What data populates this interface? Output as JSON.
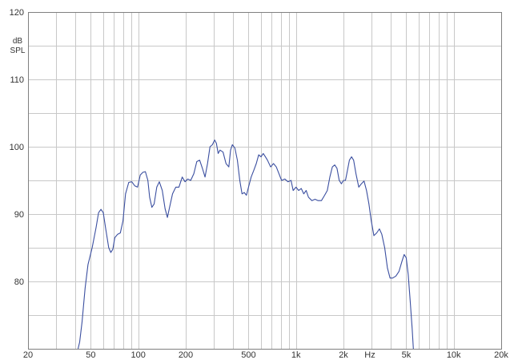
{
  "chart_data": {
    "type": "line",
    "x_scale": "log",
    "xlim": [
      20,
      20000
    ],
    "ylim": [
      70,
      120
    ],
    "grid": true,
    "y_unit_lines": [
      "dB",
      "SPL"
    ],
    "x_unit": "Hz",
    "y_ticks": [
      {
        "value": 80,
        "label": "80"
      },
      {
        "value": 90,
        "label": "90"
      },
      {
        "value": 100,
        "label": "100"
      },
      {
        "value": 110,
        "label": "110"
      },
      {
        "value": 120,
        "label": "120"
      }
    ],
    "x_ticks": [
      {
        "value": 20,
        "label": "20"
      },
      {
        "value": 50,
        "label": "50"
      },
      {
        "value": 100,
        "label": "100"
      },
      {
        "value": 200,
        "label": "200"
      },
      {
        "value": 500,
        "label": "500"
      },
      {
        "value": 1000,
        "label": "1k"
      },
      {
        "value": 2000,
        "label": "2k"
      },
      {
        "value": 5000,
        "label": "5k"
      },
      {
        "value": 10000,
        "label": "10k"
      },
      {
        "value": 20000,
        "label": "20k"
      }
    ],
    "x_gridlines": [
      30,
      40,
      50,
      60,
      70,
      80,
      90,
      100,
      200,
      300,
      400,
      500,
      600,
      700,
      800,
      900,
      1000,
      2000,
      3000,
      4000,
      5000,
      6000,
      7000,
      8000,
      9000,
      10000
    ],
    "y_gridlines": [
      75,
      80,
      85,
      90,
      95,
      100,
      105,
      110,
      115
    ],
    "series": [
      {
        "color": "#3b4fa0",
        "points": [
          [
            41.5,
            70.0
          ],
          [
            42.5,
            71.0
          ],
          [
            44,
            74.0
          ],
          [
            46,
            79.0
          ],
          [
            48,
            82.5
          ],
          [
            51,
            85.0
          ],
          [
            54,
            88.0
          ],
          [
            56,
            90.2
          ],
          [
            58,
            90.7
          ],
          [
            60,
            90.2
          ],
          [
            62,
            88.0
          ],
          [
            65,
            85.0
          ],
          [
            67,
            84.3
          ],
          [
            69,
            84.8
          ],
          [
            71,
            86.5
          ],
          [
            74,
            87.0
          ],
          [
            77,
            87.2
          ],
          [
            80,
            89.0
          ],
          [
            83,
            93.0
          ],
          [
            87,
            94.7
          ],
          [
            91,
            94.8
          ],
          [
            95,
            94.2
          ],
          [
            99,
            94.0
          ],
          [
            103,
            95.8
          ],
          [
            107,
            96.2
          ],
          [
            111,
            96.3
          ],
          [
            115,
            95.0
          ],
          [
            118,
            92.5
          ],
          [
            122,
            91.0
          ],
          [
            126,
            91.5
          ],
          [
            131,
            94.0
          ],
          [
            136,
            94.8
          ],
          [
            142,
            93.5
          ],
          [
            148,
            90.8
          ],
          [
            153,
            89.5
          ],
          [
            158,
            91.0
          ],
          [
            165,
            93.0
          ],
          [
            173,
            94.0
          ],
          [
            181,
            94.0
          ],
          [
            190,
            95.5
          ],
          [
            198,
            94.8
          ],
          [
            206,
            95.2
          ],
          [
            215,
            95.0
          ],
          [
            225,
            96.0
          ],
          [
            235,
            97.8
          ],
          [
            245,
            98.0
          ],
          [
            255,
            96.8
          ],
          [
            265,
            95.5
          ],
          [
            275,
            97.5
          ],
          [
            285,
            100.0
          ],
          [
            295,
            100.3
          ],
          [
            305,
            101.0
          ],
          [
            313,
            100.5
          ],
          [
            321,
            99.0
          ],
          [
            330,
            99.5
          ],
          [
            345,
            99.2
          ],
          [
            360,
            97.5
          ],
          [
            375,
            97.0
          ],
          [
            385,
            99.5
          ],
          [
            395,
            100.3
          ],
          [
            410,
            99.8
          ],
          [
            425,
            98.0
          ],
          [
            440,
            95.0
          ],
          [
            455,
            93.0
          ],
          [
            470,
            93.2
          ],
          [
            485,
            92.8
          ],
          [
            500,
            94.0
          ],
          [
            520,
            95.5
          ],
          [
            540,
            96.5
          ],
          [
            560,
            97.5
          ],
          [
            580,
            98.8
          ],
          [
            600,
            98.5
          ],
          [
            620,
            99.0
          ],
          [
            640,
            98.5
          ],
          [
            660,
            98.0
          ],
          [
            690,
            97.0
          ],
          [
            720,
            97.5
          ],
          [
            750,
            97.0
          ],
          [
            780,
            96.0
          ],
          [
            810,
            95.0
          ],
          [
            850,
            95.2
          ],
          [
            890,
            94.8
          ],
          [
            930,
            95.0
          ],
          [
            960,
            93.5
          ],
          [
            1000,
            94.0
          ],
          [
            1040,
            93.5
          ],
          [
            1080,
            93.8
          ],
          [
            1120,
            93.0
          ],
          [
            1160,
            93.5
          ],
          [
            1200,
            92.5
          ],
          [
            1260,
            92.0
          ],
          [
            1320,
            92.2
          ],
          [
            1380,
            92.0
          ],
          [
            1450,
            92.0
          ],
          [
            1520,
            92.8
          ],
          [
            1580,
            93.5
          ],
          [
            1640,
            95.5
          ],
          [
            1700,
            97.0
          ],
          [
            1760,
            97.3
          ],
          [
            1820,
            96.8
          ],
          [
            1880,
            95.0
          ],
          [
            1940,
            94.5
          ],
          [
            2000,
            95.0
          ],
          [
            2060,
            95.0
          ],
          [
            2120,
            96.5
          ],
          [
            2180,
            98.0
          ],
          [
            2250,
            98.5
          ],
          [
            2320,
            98.0
          ],
          [
            2400,
            96.0
          ],
          [
            2500,
            94.0
          ],
          [
            2600,
            94.5
          ],
          [
            2700,
            94.9
          ],
          [
            2800,
            93.5
          ],
          [
            2900,
            91.5
          ],
          [
            3000,
            89.0
          ],
          [
            3120,
            86.8
          ],
          [
            3250,
            87.2
          ],
          [
            3380,
            87.8
          ],
          [
            3500,
            87.0
          ],
          [
            3650,
            85.0
          ],
          [
            3800,
            82.0
          ],
          [
            3950,
            80.5
          ],
          [
            4100,
            80.5
          ],
          [
            4300,
            80.8
          ],
          [
            4500,
            81.5
          ],
          [
            4700,
            83.0
          ],
          [
            4850,
            84.0
          ],
          [
            5000,
            83.5
          ],
          [
            5150,
            81.0
          ],
          [
            5300,
            77.0
          ],
          [
            5450,
            73.0
          ],
          [
            5550,
            70.0
          ]
        ]
      }
    ]
  }
}
